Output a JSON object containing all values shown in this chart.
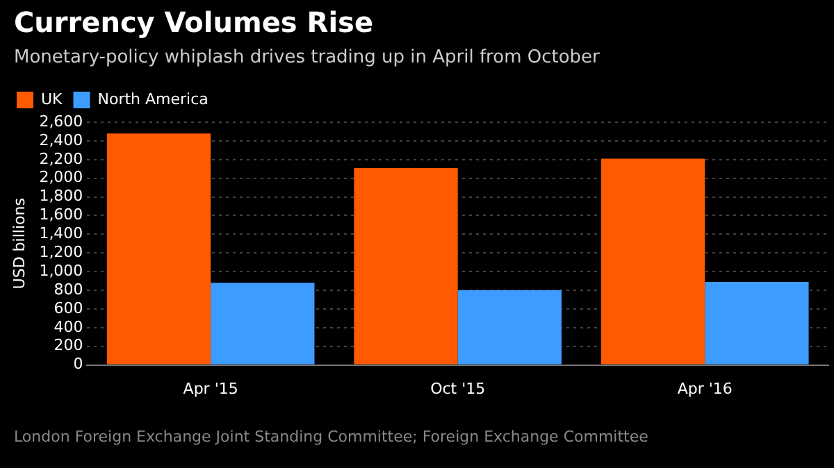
{
  "chart_data": {
    "type": "bar",
    "title": "Currency Volumes Rise",
    "subtitle": "Monetary-policy whiplash drives trading up in April from October",
    "ylabel": "USD billions",
    "categories": [
      "Apr '15",
      "Oct '15",
      "Apr '16"
    ],
    "series": [
      {
        "name": "UK",
        "color": "#ff5a00",
        "values": [
          2480,
          2110,
          2210
        ]
      },
      {
        "name": "North America",
        "color": "#3d9cff",
        "values": [
          880,
          800,
          890
        ]
      }
    ],
    "ylim": [
      0,
      2600
    ],
    "yticks": [
      {
        "value": 0,
        "label": "0"
      },
      {
        "value": 200,
        "label": "200"
      },
      {
        "value": 400,
        "label": "400"
      },
      {
        "value": 600,
        "label": "600"
      },
      {
        "value": 800,
        "label": "800"
      },
      {
        "value": 1000,
        "label": "1,000"
      },
      {
        "value": 1200,
        "label": "1,200"
      },
      {
        "value": 1400,
        "label": "1,400"
      },
      {
        "value": 1600,
        "label": "1,600"
      },
      {
        "value": 1800,
        "label": "1,800"
      },
      {
        "value": 2000,
        "label": "2,000"
      },
      {
        "value": 2200,
        "label": "2,200"
      },
      {
        "value": 2400,
        "label": "2,400"
      },
      {
        "value": 2600,
        "label": "2,600"
      }
    ],
    "grid": "y",
    "legend": "top left",
    "annotations": [
      "London Foreign Exchange Joint Standing Committee; Foreign Exchange Committee"
    ]
  }
}
